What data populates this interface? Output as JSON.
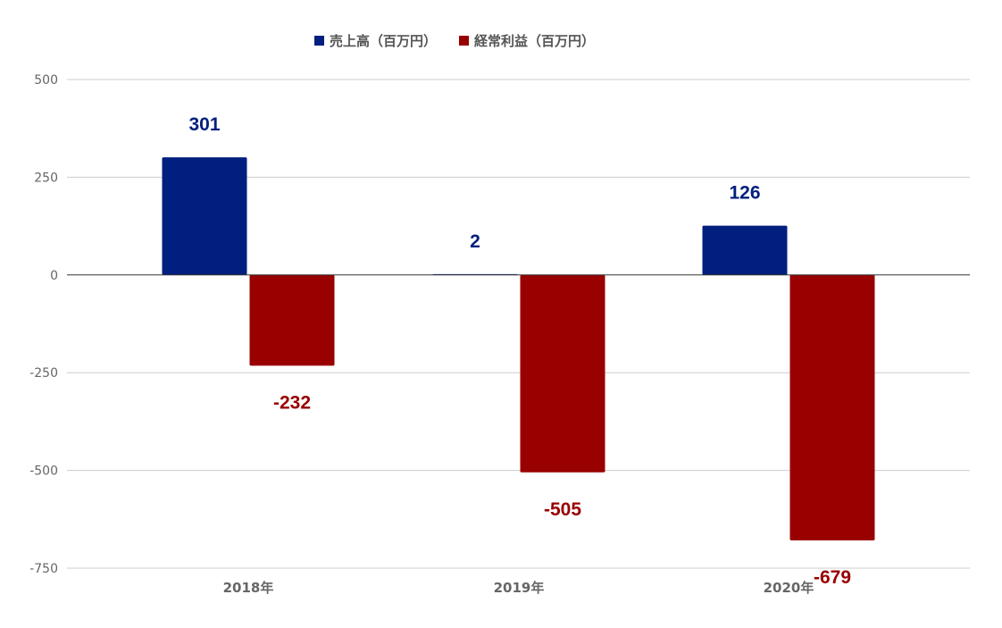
{
  "chart_data": {
    "type": "bar",
    "categories": [
      "2018年",
      "2019年",
      "2020年"
    ],
    "series": [
      {
        "name": "売上高（百万円）",
        "values": [
          301,
          2,
          126
        ],
        "color": "#001f7e"
      },
      {
        "name": "経常利益（百万円）",
        "values": [
          -232,
          -505,
          -679
        ],
        "color": "#990000"
      }
    ],
    "data_labels": [
      [
        "301",
        "2",
        "126"
      ],
      [
        "-232",
        "-505",
        "-679"
      ]
    ],
    "yticks": [
      500,
      250,
      0,
      -250,
      -500,
      -750
    ],
    "ylim": [
      -750,
      500
    ],
    "grid": true,
    "legend_position": "top-center",
    "title": "",
    "xlabel": "",
    "ylabel": ""
  }
}
